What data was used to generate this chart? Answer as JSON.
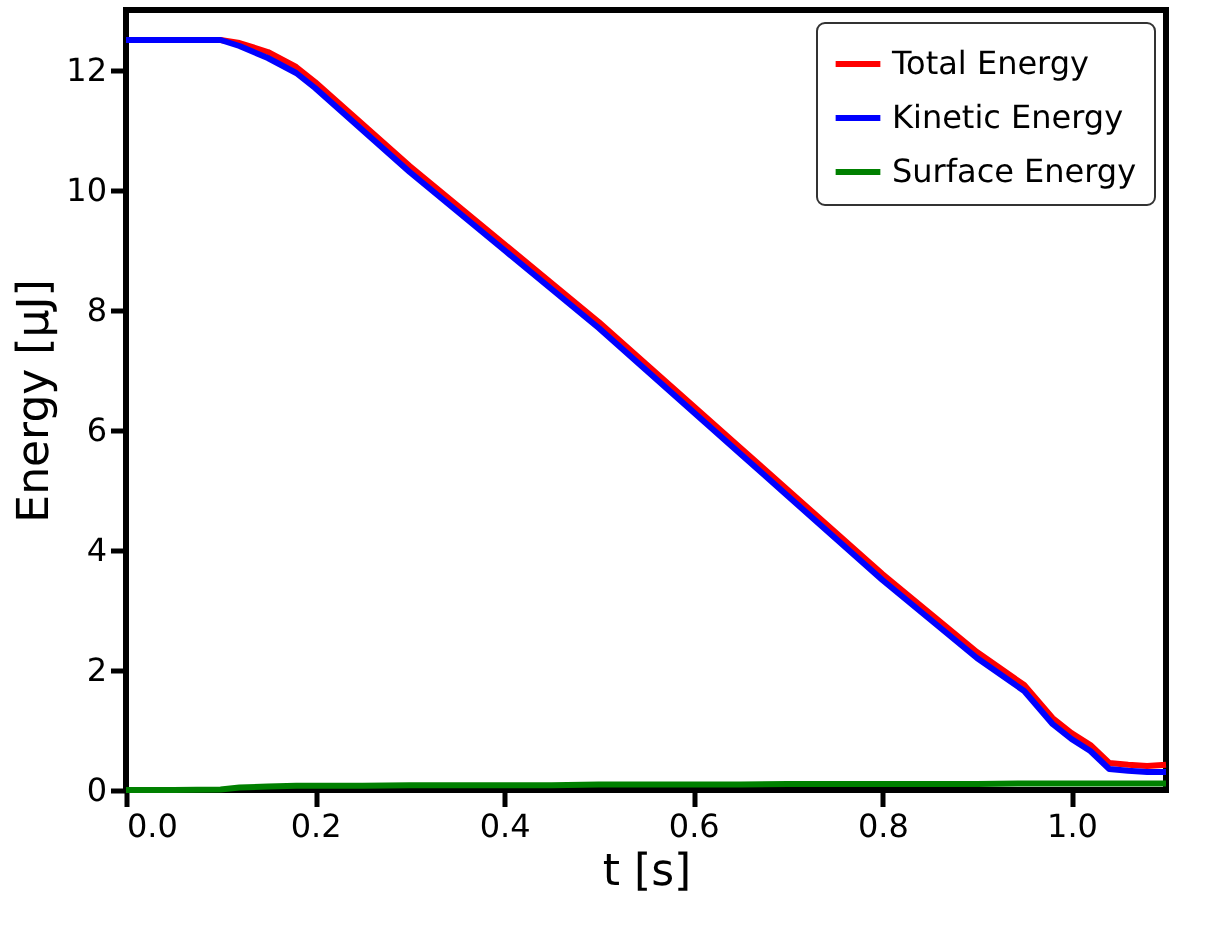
{
  "chart_data": {
    "type": "line",
    "xlabel": "t [s]",
    "ylabel": "Energy [μJ]",
    "xlim": [
      0,
      1.1
    ],
    "ylim": [
      0,
      13
    ],
    "xticks": [
      {
        "value": 0,
        "label": "0.0"
      },
      0.2,
      0.4,
      0.6,
      0.8,
      {
        "value": 1,
        "label": "1.0"
      }
    ],
    "yticks": [
      0,
      2,
      4,
      6,
      8,
      10,
      12
    ],
    "x": [
      0,
      0.05,
      0.1,
      0.12,
      0.15,
      0.18,
      0.2,
      0.25,
      0.3,
      0.35,
      0.4,
      0.45,
      0.5,
      0.55,
      0.6,
      0.65,
      0.7,
      0.75,
      0.8,
      0.85,
      0.9,
      0.95,
      0.98,
      1.0,
      1.02,
      1.03,
      1.04,
      1.06,
      1.08,
      1.1
    ],
    "series": [
      {
        "name": "Total Energy",
        "color": "#ff0000",
        "values": [
          12.5,
          12.5,
          12.5,
          12.45,
          12.3,
          12.05,
          11.8,
          11.1,
          10.4,
          9.75,
          9.1,
          8.45,
          7.8,
          7.1,
          6.4,
          5.7,
          5.0,
          4.3,
          3.6,
          2.95,
          2.3,
          1.75,
          1.2,
          0.95,
          0.75,
          0.6,
          0.45,
          0.42,
          0.4,
          0.42
        ]
      },
      {
        "name": "Kinetic Energy",
        "color": "#0000ff",
        "values": [
          12.5,
          12.5,
          12.5,
          12.4,
          12.2,
          11.95,
          11.7,
          11.0,
          10.3,
          9.65,
          9.0,
          8.35,
          7.7,
          7.0,
          6.3,
          5.6,
          4.9,
          4.2,
          3.5,
          2.85,
          2.2,
          1.65,
          1.1,
          0.85,
          0.65,
          0.5,
          0.35,
          0.32,
          0.3,
          0.3
        ]
      },
      {
        "name": "Surface Energy",
        "color": "#008000",
        "values": [
          0,
          0,
          0.01,
          0.04,
          0.06,
          0.07,
          0.07,
          0.07,
          0.08,
          0.08,
          0.08,
          0.08,
          0.09,
          0.09,
          0.09,
          0.09,
          0.1,
          0.1,
          0.1,
          0.1,
          0.1,
          0.11,
          0.11,
          0.11,
          0.11,
          0.11,
          0.11,
          0.11,
          0.11,
          0.11
        ]
      }
    ],
    "legend": "top right",
    "grid": false,
    "line_style": "solid",
    "marker": "none"
  }
}
